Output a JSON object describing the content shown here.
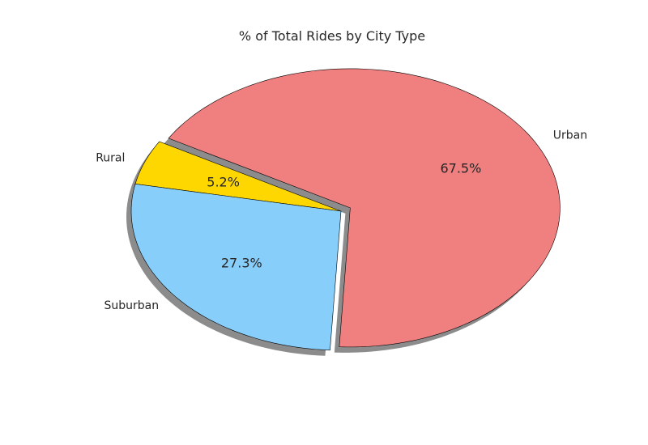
{
  "chart_data": {
    "type": "pie",
    "title": "% of Total Rides by City Type",
    "slices": [
      {
        "label": "Rural",
        "value": 5.2,
        "pct_text": "5.2%",
        "color": "#FFD700"
      },
      {
        "label": "Suburban",
        "value": 27.3,
        "pct_text": "27.3%",
        "color": "#87CEFA"
      },
      {
        "label": "Urban",
        "value": 67.5,
        "pct_text": "67.5%",
        "color": "#F08080"
      }
    ],
    "exploded": "Urban",
    "shadow": true,
    "startangle": 150,
    "edgecolor": "#000000"
  }
}
